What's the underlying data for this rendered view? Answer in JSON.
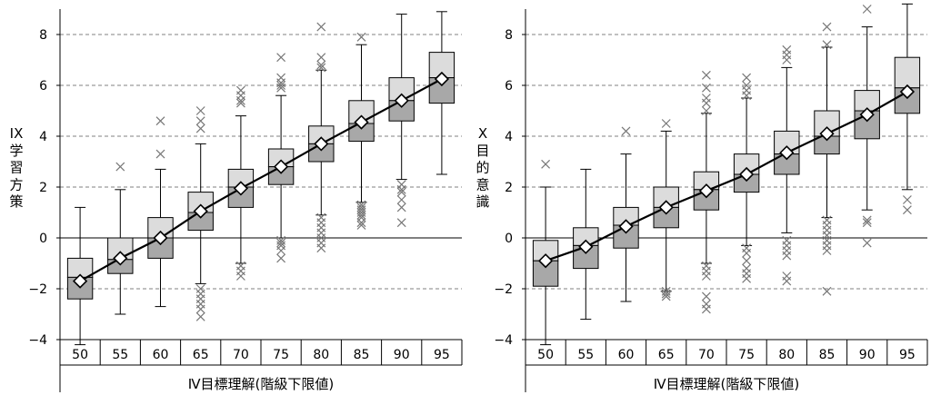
{
  "chart_data": [
    {
      "type": "box",
      "ylabel": "IX学習方策",
      "xlabel": "Ⅳ目標理解(階級下限値)",
      "categories": [
        "50",
        "55",
        "60",
        "65",
        "70",
        "75",
        "80",
        "85",
        "90",
        "95"
      ],
      "ylim": [
        -4,
        9
      ],
      "yticks": [
        -4,
        -2,
        0,
        2,
        4,
        6,
        8
      ],
      "grid": "horizontal-dashed",
      "boxes": [
        {
          "x": "50",
          "whisker_low": -4.2,
          "q1": -2.4,
          "median": -1.55,
          "q3": -0.8,
          "whisker_high": 1.2,
          "mean": -1.7,
          "outliers": []
        },
        {
          "x": "55",
          "whisker_low": -3.0,
          "q1": -1.4,
          "median": -0.85,
          "q3": 0.0,
          "whisker_high": 1.9,
          "mean": -0.8,
          "outliers": [
            2.8
          ]
        },
        {
          "x": "60",
          "whisker_low": -2.7,
          "q1": -0.8,
          "median": 0.0,
          "q3": 0.8,
          "whisker_high": 2.7,
          "mean": 0.0,
          "outliers": [
            4.6,
            3.3
          ]
        },
        {
          "x": "65",
          "whisker_low": -1.8,
          "q1": 0.3,
          "median": 1.0,
          "q3": 1.8,
          "whisker_high": 3.7,
          "mean": 1.05,
          "outliers": [
            5.0,
            4.6,
            4.3,
            -2.0,
            -2.2,
            -2.4,
            -2.6,
            -2.8,
            -3.1
          ]
        },
        {
          "x": "70",
          "whisker_low": -1.0,
          "q1": 1.2,
          "median": 2.0,
          "q3": 2.7,
          "whisker_high": 4.8,
          "mean": 1.95,
          "outliers": [
            5.8,
            5.6,
            5.4,
            5.3,
            -1.1,
            -1.3,
            -1.5
          ]
        },
        {
          "x": "75",
          "whisker_low": 0.0,
          "q1": 2.1,
          "median": 2.8,
          "q3": 3.5,
          "whisker_high": 5.6,
          "mean": 2.8,
          "outliers": [
            7.1,
            6.3,
            6.1,
            6.0,
            5.9,
            -0.1,
            -0.2,
            -0.3,
            -0.5,
            -0.8
          ]
        },
        {
          "x": "80",
          "whisker_low": 0.9,
          "q1": 3.0,
          "median": 3.7,
          "q3": 4.4,
          "whisker_high": 6.6,
          "mean": 3.7,
          "outliers": [
            8.3,
            7.1,
            6.8,
            6.7,
            0.8,
            0.6,
            0.4,
            0.2,
            0.0,
            -0.2,
            -0.4
          ]
        },
        {
          "x": "85",
          "whisker_low": 1.4,
          "q1": 3.8,
          "median": 4.5,
          "q3": 5.4,
          "whisker_high": 7.6,
          "mean": 4.55,
          "outliers": [
            7.9,
            1.3,
            1.2,
            1.1,
            1.0,
            0.9,
            0.8,
            0.6,
            0.5
          ]
        },
        {
          "x": "90",
          "whisker_low": 2.3,
          "q1": 4.6,
          "median": 5.4,
          "q3": 6.3,
          "whisker_high": 8.8,
          "mean": 5.4,
          "outliers": [
            2.1,
            1.9,
            1.8,
            1.5,
            1.2,
            0.6
          ]
        },
        {
          "x": "95",
          "whisker_low": 2.5,
          "q1": 5.3,
          "median": 6.3,
          "q3": 7.3,
          "whisker_high": 8.9,
          "mean": 6.25,
          "outliers": []
        }
      ]
    },
    {
      "type": "box",
      "ylabel": "X目的意識",
      "xlabel": "Ⅳ目標理解(階級下限値)",
      "categories": [
        "50",
        "55",
        "60",
        "65",
        "70",
        "75",
        "80",
        "85",
        "90",
        "95"
      ],
      "ylim": [
        -4,
        9
      ],
      "yticks": [
        -4,
        -2,
        0,
        2,
        4,
        6,
        8
      ],
      "grid": "horizontal-dashed",
      "boxes": [
        {
          "x": "50",
          "whisker_low": -4.2,
          "q1": -1.9,
          "median": -0.9,
          "q3": -0.1,
          "whisker_high": 2.0,
          "mean": -0.9,
          "outliers": [
            2.9
          ]
        },
        {
          "x": "55",
          "whisker_low": -3.2,
          "q1": -1.2,
          "median": -0.3,
          "q3": 0.4,
          "whisker_high": 2.7,
          "mean": -0.35,
          "outliers": []
        },
        {
          "x": "60",
          "whisker_low": -2.5,
          "q1": -0.4,
          "median": 0.5,
          "q3": 1.2,
          "whisker_high": 3.3,
          "mean": 0.45,
          "outliers": [
            4.2
          ]
        },
        {
          "x": "65",
          "whisker_low": -2.1,
          "q1": 0.4,
          "median": 1.2,
          "q3": 2.0,
          "whisker_high": 4.2,
          "mean": 1.2,
          "outliers": [
            4.5,
            -2.1,
            -2.2,
            -2.3
          ]
        },
        {
          "x": "70",
          "whisker_low": -1.0,
          "q1": 1.1,
          "median": 1.9,
          "q3": 2.6,
          "whisker_high": 4.9,
          "mean": 1.85,
          "outliers": [
            6.4,
            5.9,
            5.5,
            5.3,
            5.0,
            -1.1,
            -1.3,
            -1.5,
            -2.3,
            -2.6,
            -2.8
          ]
        },
        {
          "x": "75",
          "whisker_low": -0.3,
          "q1": 1.8,
          "median": 2.5,
          "q3": 3.3,
          "whisker_high": 5.5,
          "mean": 2.5,
          "outliers": [
            6.3,
            6.0,
            5.8,
            5.6,
            -0.4,
            -0.6,
            -0.9,
            -1.2,
            -1.4,
            -1.6
          ]
        },
        {
          "x": "80",
          "whisker_low": 0.2,
          "q1": 2.5,
          "median": 3.3,
          "q3": 4.2,
          "whisker_high": 6.7,
          "mean": 3.35,
          "outliers": [
            7.4,
            7.2,
            7.0,
            -0.1,
            -0.3,
            -0.5,
            -0.7,
            -1.5,
            -1.7
          ]
        },
        {
          "x": "85",
          "whisker_low": 0.8,
          "q1": 3.3,
          "median": 4.0,
          "q3": 5.0,
          "whisker_high": 7.5,
          "mean": 4.1,
          "outliers": [
            8.3,
            7.6,
            0.7,
            0.5,
            0.3,
            0.1,
            -0.1,
            -0.3,
            -0.5,
            -2.1
          ]
        },
        {
          "x": "90",
          "whisker_low": 1.1,
          "q1": 3.9,
          "median": 5.0,
          "q3": 5.8,
          "whisker_high": 8.3,
          "mean": 4.85,
          "outliers": [
            9.0,
            0.7,
            0.6,
            -0.2
          ]
        },
        {
          "x": "95",
          "whisker_low": 1.9,
          "q1": 4.9,
          "median": 5.9,
          "q3": 7.1,
          "whisker_high": 9.2,
          "mean": 5.75,
          "outliers": [
            1.5,
            1.1
          ]
        }
      ]
    }
  ],
  "style": {
    "q3_box_color": "#dcdcdc",
    "q1_box_color": "#a8a8a8",
    "outlier_color": "#777777",
    "mean_line_color": "#000000",
    "grid_color": "#808080"
  }
}
